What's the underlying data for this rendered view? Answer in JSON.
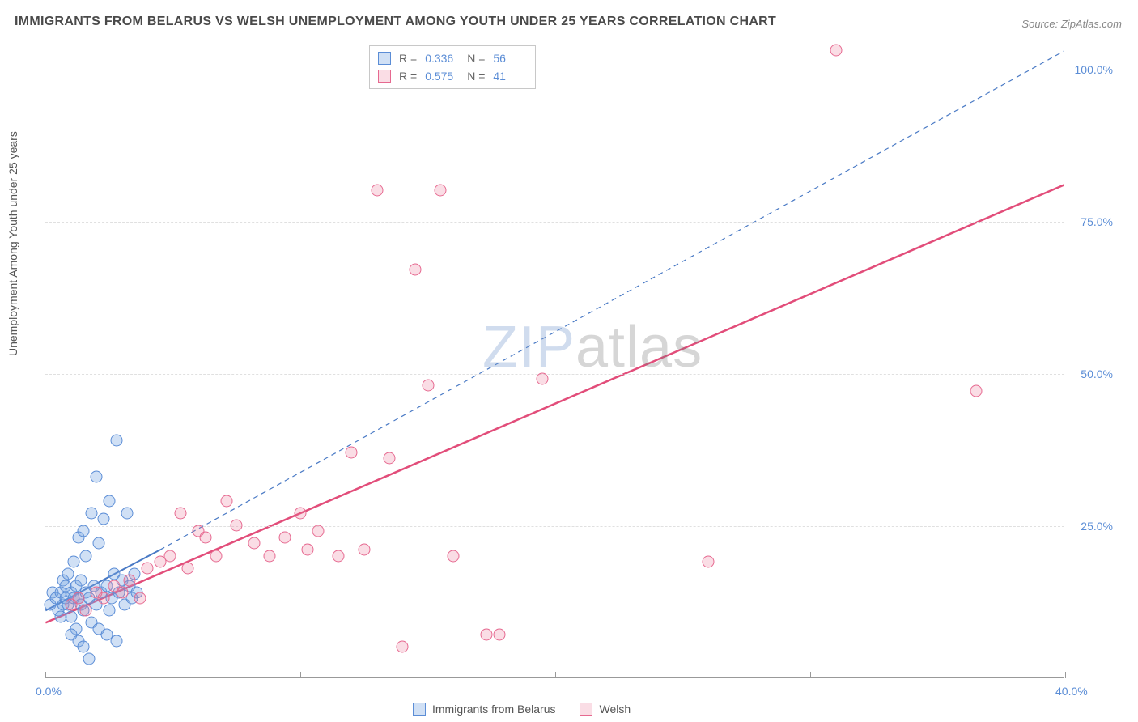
{
  "title": "IMMIGRANTS FROM BELARUS VS WELSH UNEMPLOYMENT AMONG YOUTH UNDER 25 YEARS CORRELATION CHART",
  "source_label": "Source:",
  "source_name": "ZipAtlas.com",
  "y_axis_label": "Unemployment Among Youth under 25 years",
  "watermark": {
    "part1": "ZIP",
    "part2": "atlas"
  },
  "chart": {
    "type": "scatter",
    "background_color": "#ffffff",
    "xlim": [
      0,
      40
    ],
    "ylim": [
      0,
      105
    ],
    "xticks": [
      0,
      10,
      20,
      30,
      40
    ],
    "xtick_labels": [
      "0.0%",
      "",
      "",
      "",
      "40.0%"
    ],
    "yticks": [
      25,
      50,
      75,
      100
    ],
    "ytick_labels": [
      "25.0%",
      "50.0%",
      "75.0%",
      "100.0%"
    ],
    "grid_color": "#e0e0e0",
    "axis_color": "#999999",
    "marker_radius": 7.5,
    "marker_border_width": 1.2,
    "series": [
      {
        "name": "Immigrants from Belarus",
        "key": "belarus",
        "fill_color": "rgba(120,165,225,0.35)",
        "stroke_color": "#5b8dd6",
        "R": "0.336",
        "N": "56",
        "trend": {
          "x1": 0,
          "y1": 11,
          "x2": 4.5,
          "y2": 21,
          "x3": 40,
          "y3": 103,
          "color": "#4a7ac5",
          "solid_until_x": 4.5,
          "width": 2
        },
        "points": [
          [
            0.2,
            12
          ],
          [
            0.3,
            14
          ],
          [
            0.4,
            13
          ],
          [
            0.5,
            11
          ],
          [
            0.6,
            10
          ],
          [
            0.6,
            14
          ],
          [
            0.7,
            12
          ],
          [
            0.7,
            16
          ],
          [
            0.8,
            13
          ],
          [
            0.8,
            15
          ],
          [
            0.9,
            12
          ],
          [
            0.9,
            17
          ],
          [
            1.0,
            14
          ],
          [
            1.0,
            10
          ],
          [
            1.1,
            13
          ],
          [
            1.1,
            19
          ],
          [
            1.2,
            15
          ],
          [
            1.2,
            8
          ],
          [
            1.3,
            13
          ],
          [
            1.3,
            23
          ],
          [
            1.4,
            12
          ],
          [
            1.4,
            16
          ],
          [
            1.5,
            24
          ],
          [
            1.5,
            11
          ],
          [
            1.6,
            14
          ],
          [
            1.6,
            20
          ],
          [
            1.7,
            13
          ],
          [
            1.8,
            27
          ],
          [
            1.8,
            9
          ],
          [
            1.9,
            15
          ],
          [
            2.0,
            33
          ],
          [
            2.0,
            12
          ],
          [
            2.1,
            22
          ],
          [
            2.2,
            14
          ],
          [
            2.3,
            26
          ],
          [
            2.4,
            15
          ],
          [
            2.5,
            11
          ],
          [
            2.5,
            29
          ],
          [
            2.6,
            13
          ],
          [
            2.7,
            17
          ],
          [
            2.8,
            39
          ],
          [
            2.9,
            14
          ],
          [
            3.0,
            16
          ],
          [
            3.1,
            12
          ],
          [
            3.2,
            27
          ],
          [
            3.3,
            15
          ],
          [
            3.4,
            13
          ],
          [
            3.5,
            17
          ],
          [
            3.6,
            14
          ],
          [
            1.0,
            7
          ],
          [
            1.3,
            6
          ],
          [
            1.5,
            5
          ],
          [
            1.7,
            3
          ],
          [
            2.1,
            8
          ],
          [
            2.4,
            7
          ],
          [
            2.8,
            6
          ]
        ]
      },
      {
        "name": "Welsh",
        "key": "welsh",
        "fill_color": "rgba(235,120,150,0.25)",
        "stroke_color": "#e66990",
        "R": "0.575",
        "N": "41",
        "trend": {
          "x1": 0,
          "y1": 9,
          "x2": 40,
          "y2": 81,
          "color": "#e24d7a",
          "width": 2.5
        },
        "points": [
          [
            1.0,
            12
          ],
          [
            1.3,
            13
          ],
          [
            1.6,
            11
          ],
          [
            2.0,
            14
          ],
          [
            2.3,
            13
          ],
          [
            2.7,
            15
          ],
          [
            3.0,
            14
          ],
          [
            3.3,
            16
          ],
          [
            3.7,
            13
          ],
          [
            4.0,
            18
          ],
          [
            4.5,
            19
          ],
          [
            4.9,
            20
          ],
          [
            5.3,
            27
          ],
          [
            5.6,
            18
          ],
          [
            6.0,
            24
          ],
          [
            6.3,
            23
          ],
          [
            6.7,
            20
          ],
          [
            7.1,
            29
          ],
          [
            7.5,
            25
          ],
          [
            8.2,
            22
          ],
          [
            8.8,
            20
          ],
          [
            9.4,
            23
          ],
          [
            10.0,
            27
          ],
          [
            10.3,
            21
          ],
          [
            10.7,
            24
          ],
          [
            11.5,
            20
          ],
          [
            12.0,
            37
          ],
          [
            12.5,
            21
          ],
          [
            13.0,
            80
          ],
          [
            13.5,
            36
          ],
          [
            14.0,
            5
          ],
          [
            14.5,
            67
          ],
          [
            15.0,
            48
          ],
          [
            15.5,
            80
          ],
          [
            16.0,
            20
          ],
          [
            17.3,
            7
          ],
          [
            17.8,
            7
          ],
          [
            19.5,
            49
          ],
          [
            26.0,
            19
          ],
          [
            31.0,
            103
          ],
          [
            36.5,
            47
          ]
        ]
      }
    ]
  },
  "colors": {
    "tick_label": "#5b8dd6",
    "text": "#555555"
  }
}
